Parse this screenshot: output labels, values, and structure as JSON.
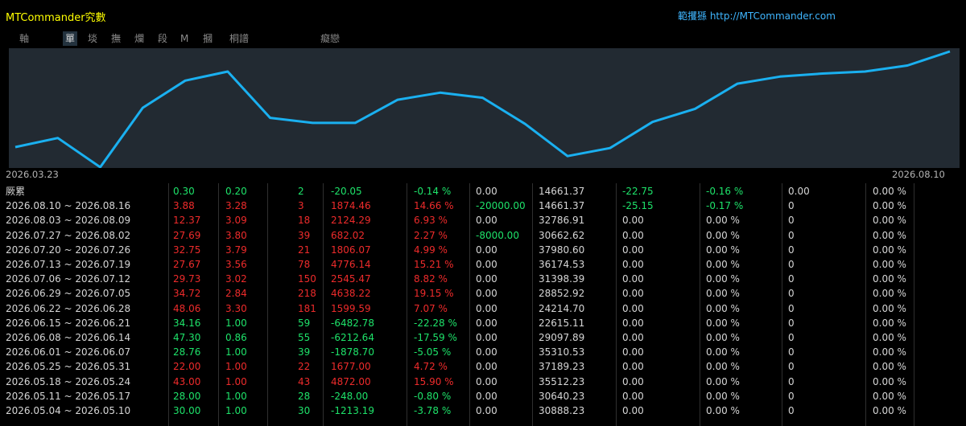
{
  "titlebar": {
    "title": "MTCommander究數",
    "link": "範攫猻 http://MTCommander.com"
  },
  "tabs": [
    {
      "label": "軸",
      "active": false
    },
    {
      "label": "單",
      "active": true
    },
    {
      "label": "埮",
      "active": false
    },
    {
      "label": "撫",
      "active": false
    },
    {
      "label": "爛",
      "active": false
    },
    {
      "label": "段",
      "active": false
    },
    {
      "label": "M",
      "active": false
    },
    {
      "label": "摑",
      "active": false
    },
    {
      "label": "桐譜",
      "active": false
    },
    {
      "label": "癡戀",
      "active": false
    }
  ],
  "colors": {
    "line": "#1ab0f0",
    "chart_bg": "#222a32",
    "positive": "#1ee36a",
    "negative": "#ee2b2b",
    "neutral": "#d6d6d6"
  },
  "chart_data": {
    "type": "line",
    "start_label": "2026.03.23",
    "end_label": "2026.08.10",
    "series": [
      {
        "values": [
          6,
          15,
          -14,
          45,
          72,
          81,
          35,
          30,
          30,
          53,
          60,
          55,
          29,
          -3,
          5,
          31,
          44,
          69,
          76,
          79,
          81,
          87,
          101
        ]
      }
    ]
  },
  "rows": [
    {
      "cells": [
        {
          "text": "厥累",
          "color": "w"
        },
        {
          "text": "0.30",
          "color": "g"
        },
        {
          "text": "0.20",
          "color": "g"
        },
        {
          "text": "2",
          "color": "g"
        },
        {
          "text": "-20.05",
          "color": "g"
        },
        {
          "text": "-0.14 %",
          "color": "g"
        },
        {
          "text": "0.00",
          "color": "w"
        },
        {
          "text": "14661.37",
          "color": "w"
        },
        {
          "text": "-22.75",
          "color": "g"
        },
        {
          "text": "-0.16 %",
          "color": "g"
        },
        {
          "text": "0.00",
          "color": "w"
        },
        {
          "text": "0.00 %",
          "color": "w"
        }
      ]
    },
    {
      "cells": [
        {
          "text": "2026.08.10 ~ 2026.08.16",
          "color": "w"
        },
        {
          "text": "3.88",
          "color": "r"
        },
        {
          "text": "3.28",
          "color": "r"
        },
        {
          "text": "3",
          "color": "r"
        },
        {
          "text": "1874.46",
          "color": "r"
        },
        {
          "text": "14.66 %",
          "color": "r"
        },
        {
          "text": "-20000.00",
          "color": "g"
        },
        {
          "text": "14661.37",
          "color": "w"
        },
        {
          "text": "-25.15",
          "color": "g"
        },
        {
          "text": "-0.17 %",
          "color": "g"
        },
        {
          "text": "0",
          "color": "w"
        },
        {
          "text": "0.00 %",
          "color": "w"
        }
      ]
    },
    {
      "cells": [
        {
          "text": "2026.08.03 ~ 2026.08.09",
          "color": "w"
        },
        {
          "text": "12.37",
          "color": "r"
        },
        {
          "text": "3.09",
          "color": "r"
        },
        {
          "text": "18",
          "color": "r"
        },
        {
          "text": "2124.29",
          "color": "r"
        },
        {
          "text": "6.93 %",
          "color": "r"
        },
        {
          "text": "0.00",
          "color": "w"
        },
        {
          "text": "32786.91",
          "color": "w"
        },
        {
          "text": "0.00",
          "color": "w"
        },
        {
          "text": "0.00 %",
          "color": "w"
        },
        {
          "text": "0",
          "color": "w"
        },
        {
          "text": "0.00 %",
          "color": "w"
        }
      ]
    },
    {
      "cells": [
        {
          "text": "2026.07.27 ~ 2026.08.02",
          "color": "w"
        },
        {
          "text": "27.69",
          "color": "r"
        },
        {
          "text": "3.80",
          "color": "r"
        },
        {
          "text": "39",
          "color": "r"
        },
        {
          "text": "682.02",
          "color": "r"
        },
        {
          "text": "2.27 %",
          "color": "r"
        },
        {
          "text": "-8000.00",
          "color": "g"
        },
        {
          "text": "30662.62",
          "color": "w"
        },
        {
          "text": "0.00",
          "color": "w"
        },
        {
          "text": "0.00 %",
          "color": "w"
        },
        {
          "text": "0",
          "color": "w"
        },
        {
          "text": "0.00 %",
          "color": "w"
        }
      ]
    },
    {
      "cells": [
        {
          "text": "2026.07.20 ~ 2026.07.26",
          "color": "w"
        },
        {
          "text": "32.75",
          "color": "r"
        },
        {
          "text": "3.79",
          "color": "r"
        },
        {
          "text": "21",
          "color": "r"
        },
        {
          "text": "1806.07",
          "color": "r"
        },
        {
          "text": "4.99 %",
          "color": "r"
        },
        {
          "text": "0.00",
          "color": "w"
        },
        {
          "text": "37980.60",
          "color": "w"
        },
        {
          "text": "0.00",
          "color": "w"
        },
        {
          "text": "0.00 %",
          "color": "w"
        },
        {
          "text": "0",
          "color": "w"
        },
        {
          "text": "0.00 %",
          "color": "w"
        }
      ]
    },
    {
      "cells": [
        {
          "text": "2026.07.13 ~ 2026.07.19",
          "color": "w"
        },
        {
          "text": "27.67",
          "color": "r"
        },
        {
          "text": "3.56",
          "color": "r"
        },
        {
          "text": "78",
          "color": "r"
        },
        {
          "text": "4776.14",
          "color": "r"
        },
        {
          "text": "15.21 %",
          "color": "r"
        },
        {
          "text": "0.00",
          "color": "w"
        },
        {
          "text": "36174.53",
          "color": "w"
        },
        {
          "text": "0.00",
          "color": "w"
        },
        {
          "text": "0.00 %",
          "color": "w"
        },
        {
          "text": "0",
          "color": "w"
        },
        {
          "text": "0.00 %",
          "color": "w"
        }
      ]
    },
    {
      "cells": [
        {
          "text": "2026.07.06 ~ 2026.07.12",
          "color": "w"
        },
        {
          "text": "29.73",
          "color": "r"
        },
        {
          "text": "3.02",
          "color": "r"
        },
        {
          "text": "150",
          "color": "r"
        },
        {
          "text": "2545.47",
          "color": "r"
        },
        {
          "text": "8.82 %",
          "color": "r"
        },
        {
          "text": "0.00",
          "color": "w"
        },
        {
          "text": "31398.39",
          "color": "w"
        },
        {
          "text": "0.00",
          "color": "w"
        },
        {
          "text": "0.00 %",
          "color": "w"
        },
        {
          "text": "0",
          "color": "w"
        },
        {
          "text": "0.00 %",
          "color": "w"
        }
      ]
    },
    {
      "cells": [
        {
          "text": "2026.06.29 ~ 2026.07.05",
          "color": "w"
        },
        {
          "text": "34.72",
          "color": "r"
        },
        {
          "text": "2.84",
          "color": "r"
        },
        {
          "text": "218",
          "color": "r"
        },
        {
          "text": "4638.22",
          "color": "r"
        },
        {
          "text": "19.15 %",
          "color": "r"
        },
        {
          "text": "0.00",
          "color": "w"
        },
        {
          "text": "28852.92",
          "color": "w"
        },
        {
          "text": "0.00",
          "color": "w"
        },
        {
          "text": "0.00 %",
          "color": "w"
        },
        {
          "text": "0",
          "color": "w"
        },
        {
          "text": "0.00 %",
          "color": "w"
        }
      ]
    },
    {
      "cells": [
        {
          "text": "2026.06.22 ~ 2026.06.28",
          "color": "w"
        },
        {
          "text": "48.06",
          "color": "r"
        },
        {
          "text": "3.30",
          "color": "r"
        },
        {
          "text": "181",
          "color": "r"
        },
        {
          "text": "1599.59",
          "color": "r"
        },
        {
          "text": "7.07 %",
          "color": "r"
        },
        {
          "text": "0.00",
          "color": "w"
        },
        {
          "text": "24214.70",
          "color": "w"
        },
        {
          "text": "0.00",
          "color": "w"
        },
        {
          "text": "0.00 %",
          "color": "w"
        },
        {
          "text": "0",
          "color": "w"
        },
        {
          "text": "0.00 %",
          "color": "w"
        }
      ]
    },
    {
      "cells": [
        {
          "text": "2026.06.15 ~ 2026.06.21",
          "color": "w"
        },
        {
          "text": "34.16",
          "color": "g"
        },
        {
          "text": "1.00",
          "color": "g"
        },
        {
          "text": "59",
          "color": "g"
        },
        {
          "text": "-6482.78",
          "color": "g"
        },
        {
          "text": "-22.28 %",
          "color": "g"
        },
        {
          "text": "0.00",
          "color": "w"
        },
        {
          "text": "22615.11",
          "color": "w"
        },
        {
          "text": "0.00",
          "color": "w"
        },
        {
          "text": "0.00 %",
          "color": "w"
        },
        {
          "text": "0",
          "color": "w"
        },
        {
          "text": "0.00 %",
          "color": "w"
        }
      ]
    },
    {
      "cells": [
        {
          "text": "2026.06.08 ~ 2026.06.14",
          "color": "w"
        },
        {
          "text": "47.30",
          "color": "g"
        },
        {
          "text": "0.86",
          "color": "g"
        },
        {
          "text": "55",
          "color": "g"
        },
        {
          "text": "-6212.64",
          "color": "g"
        },
        {
          "text": "-17.59 %",
          "color": "g"
        },
        {
          "text": "0.00",
          "color": "w"
        },
        {
          "text": "29097.89",
          "color": "w"
        },
        {
          "text": "0.00",
          "color": "w"
        },
        {
          "text": "0.00 %",
          "color": "w"
        },
        {
          "text": "0",
          "color": "w"
        },
        {
          "text": "0.00 %",
          "color": "w"
        }
      ]
    },
    {
      "cells": [
        {
          "text": "2026.06.01 ~ 2026.06.07",
          "color": "w"
        },
        {
          "text": "28.76",
          "color": "g"
        },
        {
          "text": "1.00",
          "color": "g"
        },
        {
          "text": "39",
          "color": "g"
        },
        {
          "text": "-1878.70",
          "color": "g"
        },
        {
          "text": "-5.05 %",
          "color": "g"
        },
        {
          "text": "0.00",
          "color": "w"
        },
        {
          "text": "35310.53",
          "color": "w"
        },
        {
          "text": "0.00",
          "color": "w"
        },
        {
          "text": "0.00 %",
          "color": "w"
        },
        {
          "text": "0",
          "color": "w"
        },
        {
          "text": "0.00 %",
          "color": "w"
        }
      ]
    },
    {
      "cells": [
        {
          "text": "2026.05.25 ~ 2026.05.31",
          "color": "w"
        },
        {
          "text": "22.00",
          "color": "r"
        },
        {
          "text": "1.00",
          "color": "r"
        },
        {
          "text": "22",
          "color": "r"
        },
        {
          "text": "1677.00",
          "color": "r"
        },
        {
          "text": "4.72 %",
          "color": "r"
        },
        {
          "text": "0.00",
          "color": "w"
        },
        {
          "text": "37189.23",
          "color": "w"
        },
        {
          "text": "0.00",
          "color": "w"
        },
        {
          "text": "0.00 %",
          "color": "w"
        },
        {
          "text": "0",
          "color": "w"
        },
        {
          "text": "0.00 %",
          "color": "w"
        }
      ]
    },
    {
      "cells": [
        {
          "text": "2026.05.18 ~ 2026.05.24",
          "color": "w"
        },
        {
          "text": "43.00",
          "color": "r"
        },
        {
          "text": "1.00",
          "color": "r"
        },
        {
          "text": "43",
          "color": "r"
        },
        {
          "text": "4872.00",
          "color": "r"
        },
        {
          "text": "15.90 %",
          "color": "r"
        },
        {
          "text": "0.00",
          "color": "w"
        },
        {
          "text": "35512.23",
          "color": "w"
        },
        {
          "text": "0.00",
          "color": "w"
        },
        {
          "text": "0.00 %",
          "color": "w"
        },
        {
          "text": "0",
          "color": "w"
        },
        {
          "text": "0.00 %",
          "color": "w"
        }
      ]
    },
    {
      "cells": [
        {
          "text": "2026.05.11 ~ 2026.05.17",
          "color": "w"
        },
        {
          "text": "28.00",
          "color": "g"
        },
        {
          "text": "1.00",
          "color": "g"
        },
        {
          "text": "28",
          "color": "g"
        },
        {
          "text": "-248.00",
          "color": "g"
        },
        {
          "text": "-0.80 %",
          "color": "g"
        },
        {
          "text": "0.00",
          "color": "w"
        },
        {
          "text": "30640.23",
          "color": "w"
        },
        {
          "text": "0.00",
          "color": "w"
        },
        {
          "text": "0.00 %",
          "color": "w"
        },
        {
          "text": "0",
          "color": "w"
        },
        {
          "text": "0.00 %",
          "color": "w"
        }
      ]
    },
    {
      "cells": [
        {
          "text": "2026.05.04 ~ 2026.05.10",
          "color": "w"
        },
        {
          "text": "30.00",
          "color": "g"
        },
        {
          "text": "1.00",
          "color": "g"
        },
        {
          "text": "30",
          "color": "g"
        },
        {
          "text": "-1213.19",
          "color": "g"
        },
        {
          "text": "-3.78 %",
          "color": "g"
        },
        {
          "text": "0.00",
          "color": "w"
        },
        {
          "text": "30888.23",
          "color": "w"
        },
        {
          "text": "0.00",
          "color": "w"
        },
        {
          "text": "0.00 %",
          "color": "w"
        },
        {
          "text": "0",
          "color": "w"
        },
        {
          "text": "0.00 %",
          "color": "w"
        }
      ]
    }
  ]
}
